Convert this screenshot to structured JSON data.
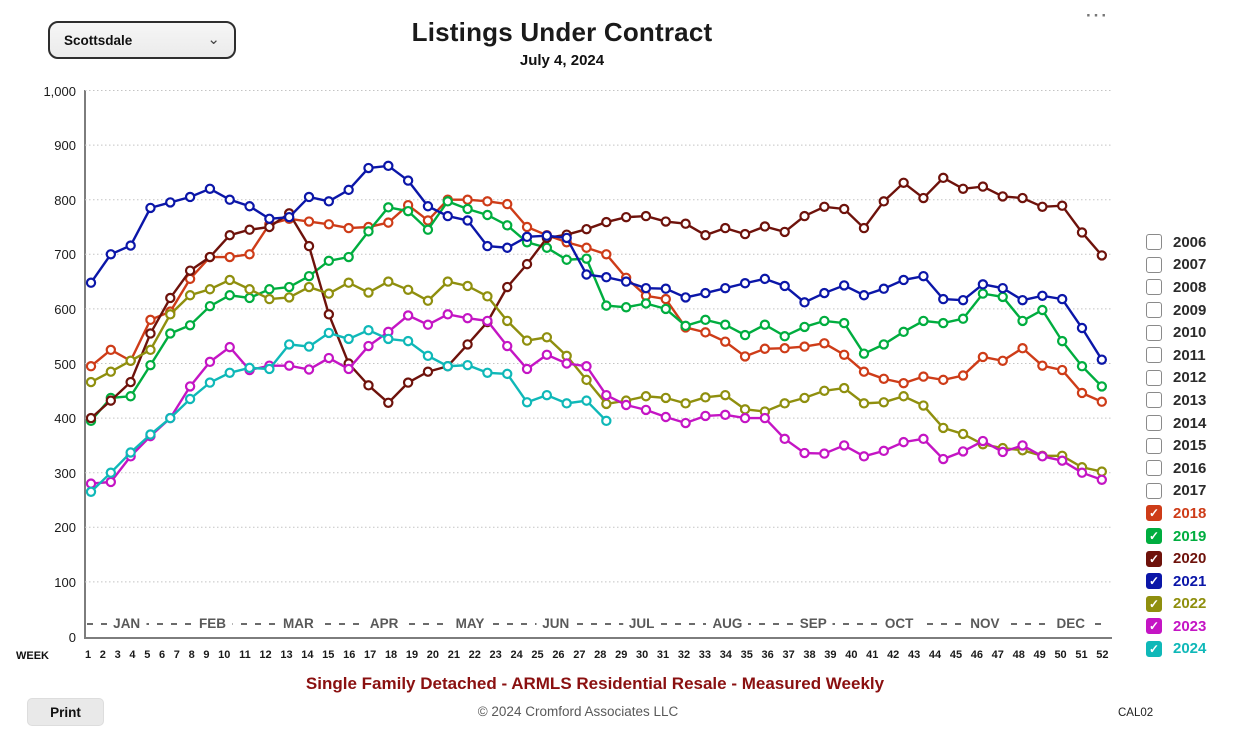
{
  "header": {
    "region_selector": {
      "value": "Scottsdale"
    },
    "title": "Listings Under Contract",
    "subtitle": "July 4, 2024",
    "menu_icon": "···"
  },
  "footer": {
    "tagline": "Single Family Detached - ARMLS Residential Resale - Measured Weekly",
    "copyright": "© 2024 Cromford Associates LLC",
    "code": "CAL02",
    "print_label": "Print"
  },
  "axes": {
    "week_label": "WEEK",
    "y_ticks": [
      "0",
      "100",
      "200",
      "300",
      "400",
      "500",
      "600",
      "700",
      "800",
      "900",
      "1,000"
    ],
    "weeks": [
      1,
      2,
      3,
      4,
      5,
      6,
      7,
      8,
      9,
      10,
      11,
      12,
      13,
      14,
      15,
      16,
      17,
      18,
      19,
      20,
      21,
      22,
      23,
      24,
      25,
      26,
      27,
      28,
      29,
      30,
      31,
      32,
      33,
      34,
      35,
      36,
      37,
      38,
      39,
      40,
      41,
      42,
      43,
      44,
      45,
      46,
      47,
      48,
      49,
      50,
      51,
      52
    ],
    "months": [
      "JAN",
      "FEB",
      "MAR",
      "APR",
      "MAY",
      "JUN",
      "JUL",
      "AUG",
      "SEP",
      "OCT",
      "NOV",
      "DEC"
    ]
  },
  "legend": {
    "items": [
      {
        "year": "2006",
        "checked": false,
        "color": null
      },
      {
        "year": "2007",
        "checked": false,
        "color": null
      },
      {
        "year": "2008",
        "checked": false,
        "color": null
      },
      {
        "year": "2009",
        "checked": false,
        "color": null
      },
      {
        "year": "2010",
        "checked": false,
        "color": null
      },
      {
        "year": "2011",
        "checked": false,
        "color": null
      },
      {
        "year": "2012",
        "checked": false,
        "color": null
      },
      {
        "year": "2013",
        "checked": false,
        "color": null
      },
      {
        "year": "2014",
        "checked": false,
        "color": null
      },
      {
        "year": "2015",
        "checked": false,
        "color": null
      },
      {
        "year": "2016",
        "checked": false,
        "color": null
      },
      {
        "year": "2017",
        "checked": false,
        "color": null
      },
      {
        "year": "2018",
        "checked": true,
        "color": "#CE3C18"
      },
      {
        "year": "2019",
        "checked": true,
        "color": "#00AD3F"
      },
      {
        "year": "2020",
        "checked": true,
        "color": "#6E120B"
      },
      {
        "year": "2021",
        "checked": true,
        "color": "#0B16A8"
      },
      {
        "year": "2022",
        "checked": true,
        "color": "#8F8F0E"
      },
      {
        "year": "2023",
        "checked": true,
        "color": "#C415C4"
      },
      {
        "year": "2024",
        "checked": true,
        "color": "#0FB8B8"
      }
    ]
  },
  "chart_data": {
    "type": "line",
    "title": "Listings Under Contract",
    "subtitle": "July 4, 2024",
    "xlabel": "WEEK",
    "x_range": [
      1,
      52
    ],
    "ylim": [
      0,
      1000
    ],
    "y_tick_interval": 100,
    "grid": true,
    "legend_position": "right",
    "marker": "open-circle",
    "hidden_years": [
      "2006",
      "2007",
      "2008",
      "2009",
      "2010",
      "2011",
      "2012",
      "2013",
      "2014",
      "2015",
      "2016",
      "2017"
    ],
    "series": [
      {
        "name": "2018",
        "color": "#CE3C18",
        "values": [
          495,
          525,
          505,
          580,
          595,
          655,
          695,
          695,
          700,
          755,
          765,
          760,
          755,
          748,
          750,
          758,
          790,
          762,
          800,
          800,
          797,
          792,
          750,
          735,
          722,
          712,
          700,
          657,
          624,
          618,
          566,
          557,
          540,
          513,
          527,
          528,
          531,
          537,
          516,
          485,
          472,
          464,
          476,
          470,
          478,
          512,
          505,
          528,
          496,
          488,
          446,
          430
        ]
      },
      {
        "name": "2019",
        "color": "#00AD3F",
        "values": [
          395,
          437,
          440,
          497,
          555,
          570,
          605,
          625,
          620,
          636,
          640,
          660,
          688,
          695,
          742,
          786,
          779,
          745,
          797,
          783,
          772,
          753,
          722,
          712,
          690,
          692,
          606,
          603,
          610,
          600,
          569,
          580,
          571,
          552,
          571,
          550,
          567,
          578,
          574,
          518,
          535,
          558,
          578,
          574,
          582,
          628,
          622,
          578,
          598,
          541,
          495,
          458
        ]
      },
      {
        "name": "2020",
        "color": "#6E120B",
        "values": [
          400,
          432,
          466,
          555,
          620,
          670,
          695,
          735,
          745,
          750,
          775,
          715,
          590,
          500,
          460,
          428,
          465,
          485,
          495,
          535,
          576,
          640,
          682,
          730,
          736,
          746,
          759,
          768,
          770,
          760,
          756,
          735,
          748,
          737,
          751,
          741,
          770,
          787,
          783,
          748,
          797,
          831,
          803,
          840,
          820,
          824,
          806,
          803,
          787,
          789,
          740,
          698
        ]
      },
      {
        "name": "2021",
        "color": "#0B16A8",
        "values": [
          648,
          700,
          716,
          785,
          795,
          805,
          820,
          800,
          788,
          765,
          768,
          805,
          797,
          818,
          858,
          862,
          835,
          788,
          770,
          762,
          715,
          712,
          732,
          734,
          730,
          663,
          658,
          650,
          638,
          637,
          621,
          629,
          638,
          647,
          655,
          642,
          612,
          629,
          643,
          625,
          637,
          653,
          660,
          618,
          616,
          645,
          638,
          616,
          624,
          618,
          565,
          507
        ]
      },
      {
        "name": "2022",
        "color": "#8F8F0E",
        "values": [
          466,
          485,
          505,
          525,
          590,
          625,
          636,
          653,
          636,
          618,
          621,
          640,
          628,
          648,
          630,
          650,
          635,
          615,
          650,
          642,
          623,
          578,
          542,
          548,
          514,
          470,
          426,
          432,
          440,
          437,
          427,
          438,
          442,
          416,
          412,
          427,
          437,
          450,
          455,
          427,
          429,
          440,
          423,
          382,
          371,
          352,
          345,
          341,
          331,
          331,
          310,
          302
        ]
      },
      {
        "name": "2023",
        "color": "#C415C4",
        "values": [
          280,
          283,
          330,
          367,
          400,
          458,
          503,
          530,
          488,
          496,
          496,
          489,
          510,
          490,
          532,
          558,
          588,
          571,
          590,
          583,
          578,
          532,
          490,
          516,
          500,
          495,
          442,
          424,
          415,
          402,
          391,
          404,
          406,
          400,
          400,
          362,
          336,
          335,
          350,
          330,
          340,
          356,
          362,
          325,
          339,
          358,
          338,
          350,
          330,
          322,
          300,
          287
        ]
      },
      {
        "name": "2024",
        "color": "#0FB8B8",
        "values": [
          265,
          300,
          337,
          370,
          400,
          435,
          465,
          483,
          492,
          490,
          535,
          531,
          556,
          545,
          561,
          545,
          541,
          514,
          495,
          497,
          483,
          481,
          429,
          442,
          427,
          432,
          395
        ]
      }
    ]
  }
}
